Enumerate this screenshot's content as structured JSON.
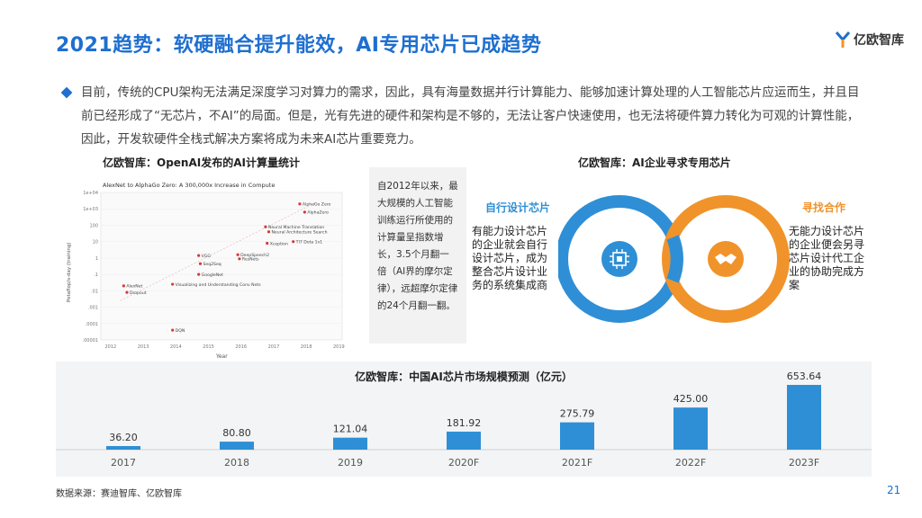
{
  "header": {
    "title": "2021趋势：软硬融合提升能效，AI专用芯片已成趋势",
    "logo_text": "亿欧智库"
  },
  "intro": "目前，传统的CPU架构无法满足深度学习对算力的需求，因此，具有海量数据并行计算能力、能够加速计算处理的人工智能芯片应运而生，并且目前已经形成了“无芯片，不AI”的局面。但是，光有先进的硬件和架构是不够的，无法让客户快速使用，也无法将硬件算力转化为可观的计算性能，因此，开发软硬件全栈式解决方案将成为未来AI芯片重要竞力。",
  "left_section": {
    "heading": "亿欧智库：OpenAI发布的AI计算量统计",
    "mini_chart": {
      "title": "AlexNet to AlphaGo Zero: A 300,000x Increase in Compute",
      "ylabel": "Petaflop/s-day (training)",
      "xlabel": "Year",
      "yticks": [
        "1e+04",
        "1e+03",
        "100",
        "10",
        "1",
        ".1",
        ".01",
        ".001",
        ".0001",
        ".00001"
      ],
      "xticks": [
        "2012",
        "2013",
        "2014",
        "2015",
        "2016",
        "2017",
        "2018",
        "2019"
      ],
      "points": [
        {
          "label": "AlphaGo Zero",
          "year": 2017.8,
          "log": 3.3
        },
        {
          "label": "AlphaZero",
          "year": 2017.95,
          "log": 2.8
        },
        {
          "label": "Neural Machine Translation",
          "year": 2016.75,
          "log": 1.9
        },
        {
          "label": "Neural Architecture Search",
          "year": 2016.85,
          "log": 1.6
        },
        {
          "label": "TI7 Dota 1v1",
          "year": 2017.6,
          "log": 1.0
        },
        {
          "label": "Xception",
          "year": 2016.8,
          "log": 0.9
        },
        {
          "label": "DeepSpeech2",
          "year": 2015.9,
          "log": 0.2
        },
        {
          "label": "ResNets",
          "year": 2015.95,
          "log": -0.05
        },
        {
          "label": "VGG",
          "year": 2014.7,
          "log": 0.15
        },
        {
          "label": "Seq2Seq",
          "year": 2014.75,
          "log": -0.35
        },
        {
          "label": "GoogleNet",
          "year": 2014.7,
          "log": -1.0
        },
        {
          "label": "AlexNet",
          "year": 2012.4,
          "log": -1.7
        },
        {
          "label": "Dropout",
          "year": 2012.5,
          "log": -2.1
        },
        {
          "label": "Visualizing and Understanding Conv Nets",
          "year": 2013.9,
          "log": -1.6
        },
        {
          "label": "DQN",
          "year": 2013.9,
          "log": -4.4
        }
      ],
      "trend": [
        [
          2012.3,
          -2.6
        ],
        [
          2018.3,
          3.4
        ]
      ]
    },
    "note": "自2012年以来，最大规模的人工智能训练运行所使用的计算量呈指数增长，3.5个月翻一倍（AI界的摩尔定律），远超摩尔定律的24个月翻一翻。"
  },
  "right_section": {
    "heading": "亿欧智库：AI企业寻求专用芯片",
    "left_circle": {
      "title": "自行设计芯片",
      "text": "有能力设计芯片的企业就会自行设计芯片，成为整合芯片设计业务的系统集成商",
      "icon": "chip-icon",
      "color": "#2e8fd6"
    },
    "right_circle": {
      "title": "寻找合作",
      "text": "无能力设计芯片的企业便会另寻芯片设计代工企业的协助完成方案",
      "icon": "handshake-icon",
      "color": "#f0932b"
    }
  },
  "chart_data": {
    "type": "bar",
    "title": "亿欧智库：中国AI芯片市场规模预测（亿元）",
    "categories": [
      "2017",
      "2018",
      "2019",
      "2020F",
      "2021F",
      "2022F",
      "2023F"
    ],
    "values": [
      36.2,
      80.8,
      121.04,
      181.92,
      275.79,
      425.0,
      653.64
    ],
    "value_labels": [
      "36.20",
      "80.80",
      "121.04",
      "181.92",
      "275.79",
      "425.00",
      "653.64"
    ],
    "xlabel": "",
    "ylabel": "",
    "ylim": [
      0,
      653.64
    ],
    "color": "#2e8fd6",
    "grid": false
  },
  "footer": {
    "source": "数据来源：赛迪智库、亿欧智库",
    "page": "21"
  }
}
